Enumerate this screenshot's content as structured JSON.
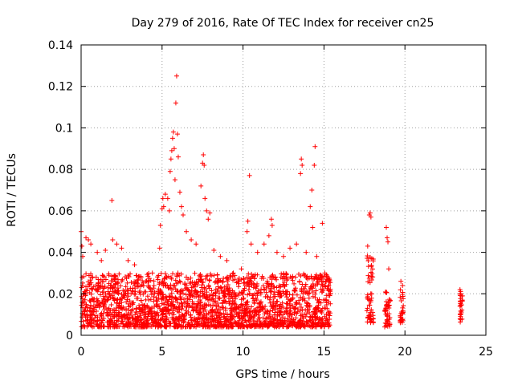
{
  "chart_data": {
    "type": "scatter",
    "title": "Day 279 of 2016, Rate Of TEC Index for receiver cn25",
    "xlabel": "GPS time / hours",
    "ylabel": "ROTI / TECUs",
    "xlim": [
      0,
      25
    ],
    "ylim": [
      0,
      0.14
    ],
    "x_ticks": [
      0,
      5,
      10,
      15,
      20,
      25
    ],
    "x_tick_labels": [
      "0",
      "5",
      "10",
      "15",
      "20",
      "25"
    ],
    "y_ticks": [
      0,
      0.02,
      0.04,
      0.06,
      0.08,
      0.1,
      0.12,
      0.14
    ],
    "y_tick_labels": [
      "0",
      "0.02",
      "0.04",
      "0.06",
      "0.08",
      "0.1",
      "0.12",
      "0.14"
    ],
    "grid": true,
    "marker": "+",
    "marker_color": "#ff0000",
    "series": [
      {
        "name": "ROTI",
        "points": [
          [
            0.0,
            0.05
          ],
          [
            0.05,
            0.043
          ],
          [
            0.1,
            0.038
          ],
          [
            0.3,
            0.047
          ],
          [
            0.45,
            0.046
          ],
          [
            0.6,
            0.044
          ],
          [
            1.0,
            0.04
          ],
          [
            1.25,
            0.036
          ],
          [
            1.5,
            0.041
          ],
          [
            1.9,
            0.065
          ],
          [
            1.95,
            0.046
          ],
          [
            2.2,
            0.044
          ],
          [
            2.5,
            0.042
          ],
          [
            2.9,
            0.036
          ],
          [
            3.3,
            0.034
          ],
          [
            3.7,
            0.028
          ],
          [
            4.0,
            0.026
          ],
          [
            4.4,
            0.03
          ],
          [
            4.85,
            0.042
          ],
          [
            4.9,
            0.053
          ],
          [
            5.0,
            0.061
          ],
          [
            5.05,
            0.066
          ],
          [
            5.1,
            0.062
          ],
          [
            5.2,
            0.068
          ],
          [
            5.35,
            0.066
          ],
          [
            5.45,
            0.06
          ],
          [
            5.5,
            0.079
          ],
          [
            5.55,
            0.085
          ],
          [
            5.6,
            0.089
          ],
          [
            5.65,
            0.095
          ],
          [
            5.7,
            0.098
          ],
          [
            5.75,
            0.09
          ],
          [
            5.8,
            0.075
          ],
          [
            5.85,
            0.112
          ],
          [
            5.9,
            0.125
          ],
          [
            5.95,
            0.097
          ],
          [
            6.0,
            0.086
          ],
          [
            6.1,
            0.069
          ],
          [
            6.2,
            0.062
          ],
          [
            6.3,
            0.058
          ],
          [
            6.5,
            0.05
          ],
          [
            6.8,
            0.046
          ],
          [
            7.1,
            0.044
          ],
          [
            7.4,
            0.072
          ],
          [
            7.5,
            0.083
          ],
          [
            7.55,
            0.087
          ],
          [
            7.6,
            0.082
          ],
          [
            7.65,
            0.066
          ],
          [
            7.75,
            0.06
          ],
          [
            7.85,
            0.056
          ],
          [
            7.95,
            0.059
          ],
          [
            8.2,
            0.041
          ],
          [
            8.6,
            0.038
          ],
          [
            9.0,
            0.036
          ],
          [
            9.4,
            0.03
          ],
          [
            9.9,
            0.032
          ],
          [
            10.25,
            0.05
          ],
          [
            10.3,
            0.055
          ],
          [
            10.4,
            0.077
          ],
          [
            10.5,
            0.044
          ],
          [
            10.9,
            0.04
          ],
          [
            11.3,
            0.044
          ],
          [
            11.6,
            0.048
          ],
          [
            11.75,
            0.056
          ],
          [
            11.8,
            0.053
          ],
          [
            12.1,
            0.04
          ],
          [
            12.5,
            0.038
          ],
          [
            12.9,
            0.042
          ],
          [
            13.3,
            0.044
          ],
          [
            13.55,
            0.078
          ],
          [
            13.6,
            0.085
          ],
          [
            13.65,
            0.082
          ],
          [
            13.9,
            0.04
          ],
          [
            14.15,
            0.062
          ],
          [
            14.25,
            0.07
          ],
          [
            14.3,
            0.052
          ],
          [
            14.4,
            0.082
          ],
          [
            14.45,
            0.091
          ],
          [
            14.55,
            0.038
          ],
          [
            14.9,
            0.054
          ],
          [
            15.05,
            0.03
          ],
          [
            15.3,
            0.024
          ],
          [
            17.7,
            0.043
          ],
          [
            17.8,
            0.058
          ],
          [
            17.85,
            0.059
          ],
          [
            17.9,
            0.057
          ],
          [
            17.95,
            0.037
          ],
          [
            18.85,
            0.052
          ],
          [
            18.9,
            0.047
          ],
          [
            18.95,
            0.045
          ],
          [
            19.0,
            0.032
          ],
          [
            19.75,
            0.026
          ],
          [
            19.85,
            0.024
          ],
          [
            23.4,
            0.022
          ],
          [
            23.55,
            0.019
          ]
        ],
        "dense_ranges": [
          {
            "x": [
              0.0,
              15.4
            ],
            "y": [
              0.004,
              0.03
            ]
          },
          {
            "x": [
              17.65,
              18.05
            ],
            "y": [
              0.006,
              0.04
            ]
          },
          {
            "x": [
              18.75,
              19.1
            ],
            "y": [
              0.004,
              0.022
            ]
          },
          {
            "x": [
              19.7,
              19.9
            ],
            "y": [
              0.006,
              0.022
            ]
          },
          {
            "x": [
              23.4,
              23.55
            ],
            "y": [
              0.006,
              0.022
            ]
          }
        ]
      }
    ]
  }
}
